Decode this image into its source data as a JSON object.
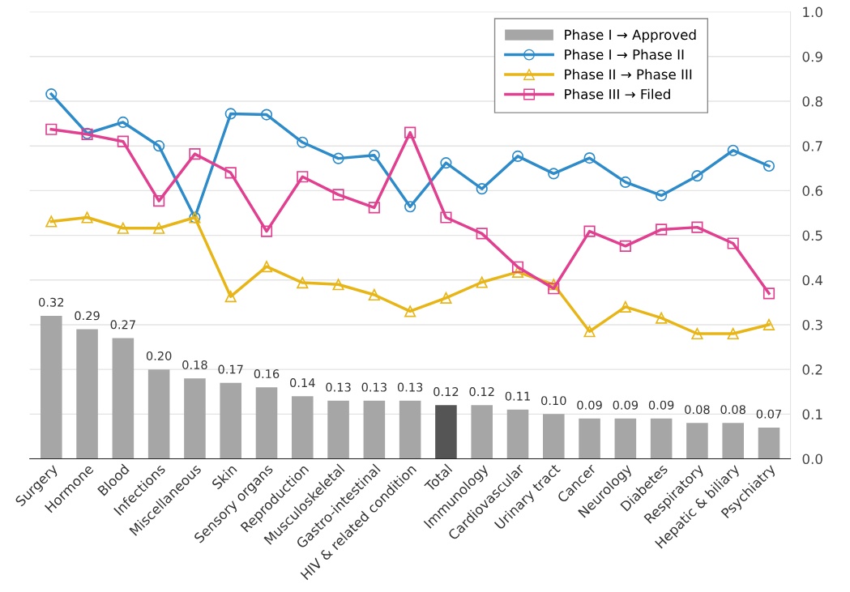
{
  "chart_data": {
    "type": "bar",
    "categories": [
      "Surgery",
      "Hormone",
      "Blood",
      "Infections",
      "Miscellaneous",
      "Skin",
      "Sensory organs",
      "Reproduction",
      "Musculoskeletal",
      "Gastro-intestinal",
      "HIV & related condition",
      "Total",
      "Immunology",
      "Cardiovascular",
      "Urinary tract",
      "Cancer",
      "Neurology",
      "Diabetes",
      "Respiratory",
      "Hepatic & biliary",
      "Psychiatry"
    ],
    "series": [
      {
        "name": "Phase I → Approved",
        "colors": [
          "#a6a6a6",
          "#a6a6a6",
          "#a6a6a6",
          "#a6a6a6",
          "#a6a6a6",
          "#a6a6a6",
          "#a6a6a6",
          "#a6a6a6",
          "#a6a6a6",
          "#a6a6a6",
          "#a6a6a6",
          "#555555",
          "#a6a6a6",
          "#a6a6a6",
          "#a6a6a6",
          "#a6a6a6",
          "#a6a6a6",
          "#a6a6a6",
          "#a6a6a6",
          "#a6a6a6",
          "#a6a6a6"
        ],
        "color": "#a6a6a6",
        "values": [
          0.32,
          0.29,
          0.27,
          0.2,
          0.18,
          0.17,
          0.16,
          0.14,
          0.13,
          0.13,
          0.13,
          0.12,
          0.12,
          0.11,
          0.1,
          0.09,
          0.09,
          0.09,
          0.08,
          0.08,
          0.07
        ],
        "value_labels": [
          "0.32",
          "0.29",
          "0.27",
          "0.20",
          "0.18",
          "0.17",
          "0.16",
          "0.14",
          "0.13",
          "0.13",
          "0.13",
          "0.12",
          "0.12",
          "0.11",
          "0.10",
          "0.09",
          "0.09",
          "0.09",
          "0.08",
          "0.08",
          "0.07"
        ]
      },
      {
        "name": "Phase I → Phase II",
        "type": "line",
        "marker": "circle",
        "color": "#2e8bc9",
        "values": [
          0.816,
          0.728,
          0.753,
          0.7,
          0.54,
          0.772,
          0.77,
          0.708,
          0.672,
          0.679,
          0.564,
          0.662,
          0.604,
          0.677,
          0.638,
          0.673,
          0.619,
          0.589,
          0.633,
          0.69,
          0.655
        ]
      },
      {
        "name": "Phase II → Phase III",
        "type": "line",
        "marker": "triangle",
        "color": "#e8b517",
        "values": [
          0.531,
          0.54,
          0.516,
          0.516,
          0.54,
          0.363,
          0.43,
          0.394,
          0.39,
          0.367,
          0.33,
          0.36,
          0.395,
          0.418,
          0.39,
          0.285,
          0.34,
          0.315,
          0.28,
          0.28,
          0.3
        ]
      },
      {
        "name": "Phase III → Filed",
        "type": "line",
        "marker": "square",
        "color": "#e0408f",
        "values": [
          0.737,
          0.726,
          0.71,
          0.577,
          0.682,
          0.64,
          0.509,
          0.631,
          0.591,
          0.562,
          0.73,
          0.54,
          0.504,
          0.429,
          0.381,
          0.509,
          0.476,
          0.513,
          0.518,
          0.482,
          0.37
        ]
      }
    ],
    "ylim": [
      0,
      1.0
    ],
    "yticks": [
      {
        "value": 0,
        "label": "0.0"
      },
      {
        "value": 0.1,
        "label": "0.1"
      },
      {
        "value": 0.2,
        "label": "0.2"
      },
      {
        "value": 0.3,
        "label": "0.3"
      },
      {
        "value": 0.4,
        "label": "0.4"
      },
      {
        "value": 0.5,
        "label": "0.5"
      },
      {
        "value": 0.6,
        "label": "0.6"
      },
      {
        "value": 0.7,
        "label": "0.7"
      },
      {
        "value": 0.8,
        "label": "0.8"
      },
      {
        "value": 0.9,
        "label": "0.9"
      },
      {
        "value": 1.0,
        "label": "1.0"
      }
    ],
    "grid": "y",
    "legend": "top right",
    "line_style": "solid"
  }
}
